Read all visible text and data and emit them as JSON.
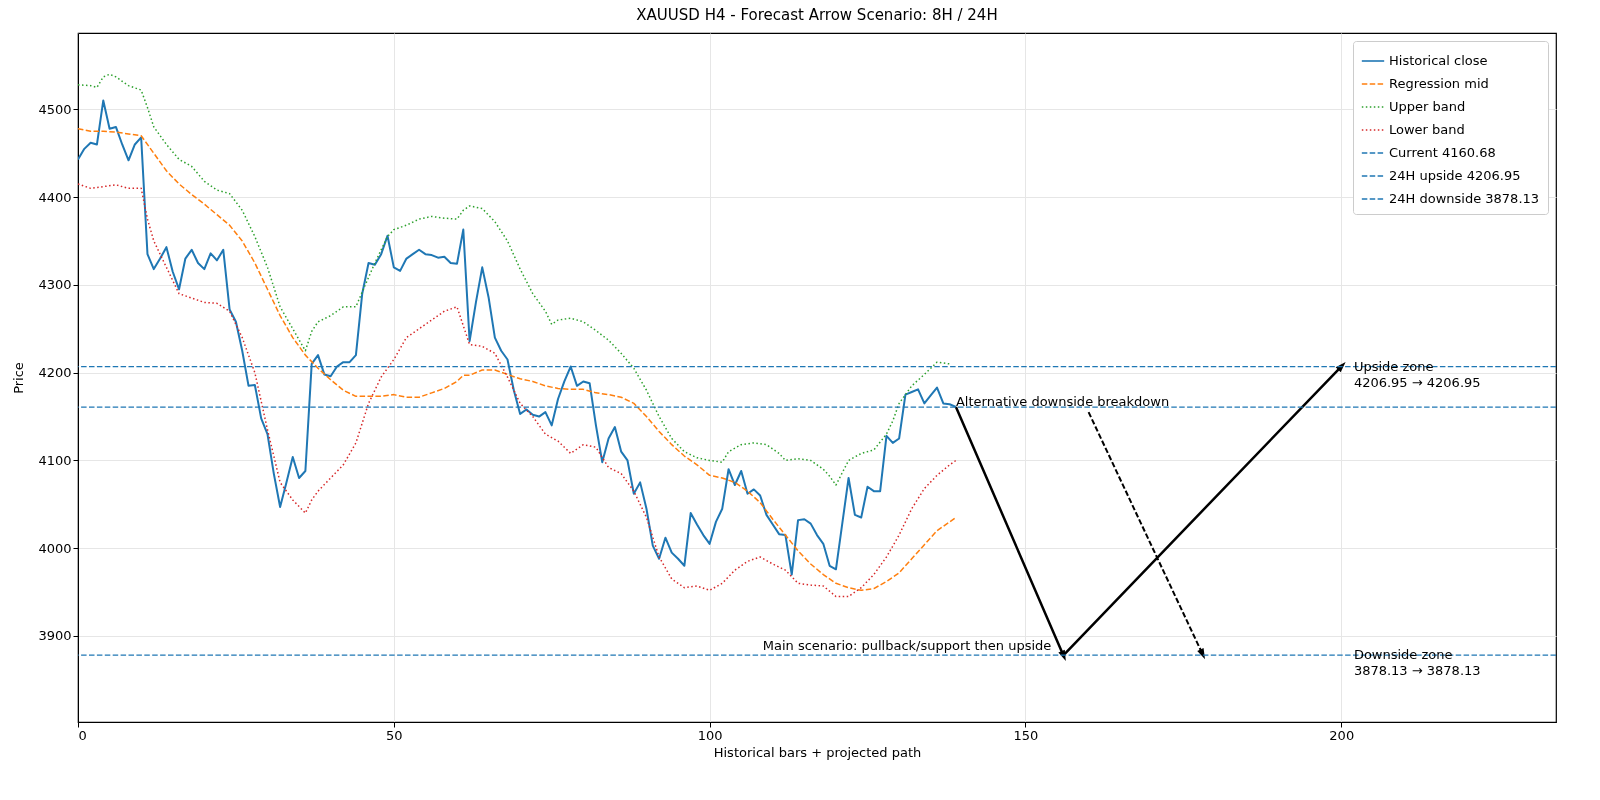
{
  "chart_data": {
    "type": "line",
    "title": "XAUUSD H4 - Forecast Arrow Scenario: 8H / 24H",
    "xlabel": "Historical bars + projected path",
    "ylabel": "Price",
    "xlim": [
      0,
      234
    ],
    "ylim": [
      3802,
      4587
    ],
    "xticks": [
      0,
      50,
      100,
      150,
      200
    ],
    "yticks": [
      3900,
      4000,
      4100,
      4200,
      4300,
      4400,
      4500
    ],
    "grid": true,
    "legend": "top right",
    "series": [
      {
        "name": "Historical close",
        "color": "#1f77b4",
        "line_style": "solid",
        "x": [
          0,
          1,
          2,
          3,
          4,
          5,
          6,
          7,
          8,
          9,
          10,
          11,
          12,
          13,
          14,
          15,
          16,
          17,
          18,
          19,
          20,
          21,
          22,
          23,
          24,
          25,
          26,
          27,
          28,
          29,
          30,
          31,
          32,
          33,
          34,
          35,
          36,
          37,
          38,
          39,
          40,
          41,
          42,
          43,
          44,
          45,
          46,
          47,
          48,
          49,
          50,
          51,
          52,
          53,
          54,
          55,
          56,
          57,
          58,
          59,
          60,
          61,
          62,
          63,
          64,
          65,
          66,
          67,
          68,
          69,
          70,
          71,
          72,
          73,
          74,
          75,
          76,
          77,
          78,
          79,
          80,
          81,
          82,
          83,
          84,
          85,
          86,
          87,
          88,
          89,
          90,
          91,
          92,
          93,
          94,
          95,
          96,
          97,
          98,
          99,
          100,
          101,
          102,
          103,
          104,
          105,
          106,
          107,
          108,
          109,
          110,
          111,
          112,
          113,
          114,
          115,
          116,
          117,
          118,
          119,
          120,
          121,
          122,
          123,
          124,
          125,
          126,
          127,
          128,
          129,
          130,
          131,
          132,
          133,
          134,
          135,
          136,
          137,
          138,
          139
        ],
        "values": [
          4443,
          4455,
          4462,
          4460,
          4510,
          4478,
          4480,
          4460,
          4442,
          4460,
          4468,
          4335,
          4318,
          4330,
          4343,
          4315,
          4295,
          4330,
          4340,
          4325,
          4318,
          4336,
          4328,
          4340,
          4272,
          4258,
          4225,
          4185,
          4186,
          4148,
          4130,
          4085,
          4047,
          4075,
          4104,
          4080,
          4088,
          4210,
          4220,
          4198,
          4196,
          4207,
          4212,
          4212,
          4220,
          4290,
          4325,
          4323,
          4335,
          4356,
          4320,
          4316,
          4330,
          4335,
          4340,
          4335,
          4334,
          4331,
          4332,
          4325,
          4324,
          4363,
          4236,
          4280,
          4320,
          4286,
          4240,
          4225,
          4215,
          4180,
          4153,
          4158,
          4152,
          4150,
          4155,
          4140,
          4170,
          4190,
          4207,
          4185,
          4190,
          4188,
          4140,
          4098,
          4125,
          4138,
          4110,
          4100,
          4062,
          4075,
          4045,
          4003,
          3988,
          4012,
          3995,
          3988,
          3980,
          4040,
          4027,
          4015,
          4005,
          4030,
          4045,
          4090,
          4072,
          4088,
          4062,
          4067,
          4060,
          4038,
          4027,
          4016,
          4015,
          3970,
          4032,
          4033,
          4028,
          4015,
          4005,
          3980,
          3976,
          4028,
          4080,
          4038,
          4035,
          4070,
          4065,
          4065,
          4128,
          4120,
          4125,
          4175,
          4178,
          4181,
          4165,
          4174,
          4183,
          4165,
          4164,
          4161
        ]
      },
      {
        "name": "Regression mid",
        "color": "#ff7f0e",
        "line_style": "dashed",
        "x": [
          0,
          2,
          4,
          6,
          8,
          10,
          12,
          14,
          16,
          18,
          20,
          22,
          24,
          26,
          28,
          30,
          32,
          34,
          36,
          38,
          40,
          42,
          44,
          46,
          48,
          50,
          52,
          54,
          56,
          58,
          60,
          61,
          62,
          64,
          66,
          68,
          70,
          72,
          74,
          76,
          78,
          80,
          82,
          84,
          86,
          88,
          90,
          92,
          94,
          96,
          98,
          100,
          102,
          104,
          106,
          108,
          110,
          112,
          114,
          116,
          118,
          120,
          122,
          124,
          126,
          128,
          130,
          132,
          134,
          136,
          139
        ],
        "values": [
          4478,
          4475,
          4475,
          4474,
          4472,
          4470,
          4450,
          4430,
          4415,
          4403,
          4392,
          4380,
          4368,
          4350,
          4325,
          4295,
          4265,
          4240,
          4220,
          4205,
          4192,
          4180,
          4173,
          4173,
          4173,
          4175,
          4172,
          4172,
          4177,
          4182,
          4190,
          4197,
          4197,
          4203,
          4203,
          4198,
          4193,
          4190,
          4185,
          4182,
          4181,
          4181,
          4177,
          4175,
          4172,
          4165,
          4150,
          4133,
          4118,
          4105,
          4095,
          4083,
          4080,
          4075,
          4065,
          4052,
          4033,
          4015,
          3997,
          3982,
          3970,
          3960,
          3955,
          3952,
          3954,
          3962,
          3972,
          3988,
          4004,
          4020,
          4035
        ]
      },
      {
        "name": "Upper band",
        "color": "#2ca02c",
        "line_style": "dotted",
        "x": [
          0,
          2,
          3,
          4,
          5,
          6,
          8,
          10,
          11,
          12,
          14,
          16,
          18,
          20,
          22,
          24,
          26,
          28,
          30,
          32,
          34,
          36,
          37,
          38,
          40,
          42,
          44,
          45,
          47,
          49,
          50,
          52,
          54,
          56,
          58,
          60,
          61,
          62,
          64,
          66,
          68,
          70,
          72,
          74,
          75,
          76,
          78,
          80,
          82,
          84,
          86,
          88,
          90,
          92,
          94,
          96,
          98,
          100,
          102,
          103,
          105,
          107,
          109,
          111,
          112,
          114,
          116,
          118,
          119,
          120,
          122,
          124,
          126,
          128,
          129,
          130,
          132,
          134,
          136,
          138
        ],
        "values": [
          4528,
          4527,
          4525,
          4537,
          4540,
          4537,
          4527,
          4522,
          4502,
          4480,
          4460,
          4443,
          4435,
          4418,
          4408,
          4404,
          4385,
          4355,
          4320,
          4275,
          4250,
          4225,
          4247,
          4258,
          4265,
          4275,
          4275,
          4292,
          4325,
          4355,
          4363,
          4368,
          4375,
          4378,
          4376,
          4375,
          4385,
          4390,
          4387,
          4372,
          4350,
          4318,
          4290,
          4270,
          4255,
          4260,
          4262,
          4258,
          4248,
          4237,
          4222,
          4205,
          4180,
          4150,
          4125,
          4110,
          4103,
          4100,
          4098,
          4110,
          4118,
          4120,
          4118,
          4108,
          4100,
          4102,
          4100,
          4090,
          4082,
          4072,
          4100,
          4108,
          4112,
          4130,
          4145,
          4165,
          4185,
          4198,
          4212,
          4210
        ]
      },
      {
        "name": "Lower band",
        "color": "#d62728",
        "line_style": "dotted",
        "x": [
          0,
          2,
          4,
          6,
          8,
          10,
          11,
          12,
          14,
          16,
          18,
          20,
          22,
          24,
          26,
          28,
          30,
          32,
          34,
          36,
          37,
          38,
          40,
          42,
          44,
          46,
          48,
          50,
          52,
          54,
          56,
          58,
          60,
          62,
          64,
          66,
          68,
          70,
          72,
          74,
          76,
          78,
          80,
          82,
          84,
          86,
          88,
          90,
          92,
          94,
          96,
          98,
          100,
          102,
          104,
          106,
          108,
          110,
          112,
          114,
          116,
          118,
          120,
          122,
          124,
          126,
          128,
          130,
          132,
          134,
          136,
          138,
          139
        ],
        "values": [
          4415,
          4410,
          4412,
          4414,
          4410,
          4410,
          4375,
          4350,
          4320,
          4290,
          4285,
          4280,
          4279,
          4270,
          4240,
          4200,
          4135,
          4075,
          4055,
          4040,
          4055,
          4065,
          4080,
          4095,
          4120,
          4165,
          4195,
          4215,
          4240,
          4250,
          4260,
          4270,
          4275,
          4232,
          4230,
          4222,
          4195,
          4165,
          4150,
          4130,
          4122,
          4108,
          4118,
          4115,
          4092,
          4085,
          4065,
          4035,
          3990,
          3965,
          3955,
          3957,
          3952,
          3960,
          3975,
          3985,
          3990,
          3982,
          3975,
          3960,
          3958,
          3957,
          3945,
          3945,
          3955,
          3970,
          3990,
          4015,
          4045,
          4068,
          4083,
          4095,
          4100
        ]
      },
      {
        "color": "#000000",
        "line_style": "solid",
        "x": [
          139,
          156,
          200
        ],
        "values": [
          4161,
          3878,
          4207
        ]
      },
      {
        "color": "#000000",
        "line_style": "dashed",
        "x": [
          160,
          178
        ],
        "values": [
          4155,
          3880
        ]
      }
    ],
    "ref_lines": [
      {
        "axis": "y",
        "value": 4160.68,
        "label": "Current 4160.68",
        "color": "#1f77b4",
        "line_style": "dashed"
      },
      {
        "axis": "y",
        "value": 4206.95,
        "label": "24H upside 4206.95",
        "color": "#1f77b4",
        "line_style": "dashed"
      },
      {
        "axis": "y",
        "value": 3878.13,
        "label": "24H downside 3878.13",
        "color": "#1f77b4",
        "line_style": "dashed"
      }
    ],
    "annotations": [
      {
        "text": "Alternative downside breakdown",
        "x": 139,
        "y": 4160.68
      },
      {
        "text": "Main scenario: pullback/support then upside",
        "x": 156,
        "y": 3878.13
      },
      {
        "text": "Upside zone\n4206.95 → 4206.95",
        "x": 202,
        "y": 4206.95
      },
      {
        "text": "Downside zone\n3878.13 → 3878.13",
        "x": 202,
        "y": 3878.13
      }
    ]
  }
}
